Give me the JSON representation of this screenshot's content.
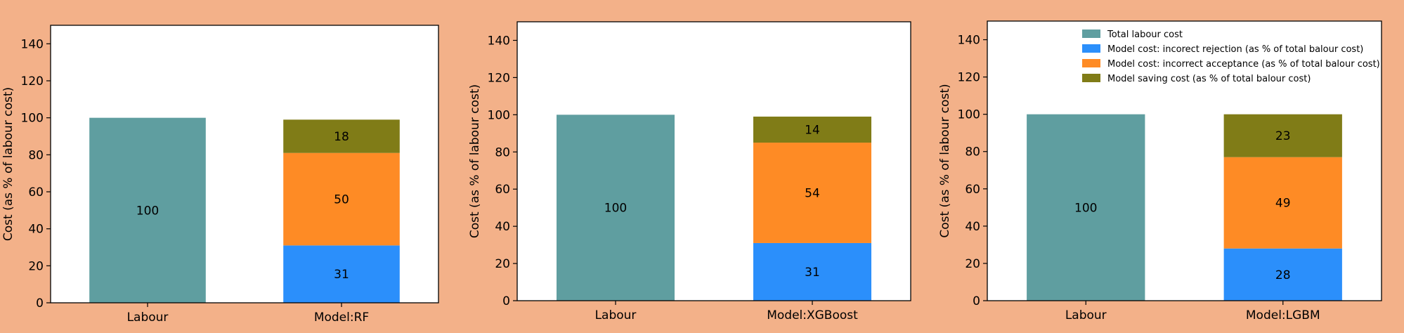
{
  "colors": {
    "background": "#f3b189",
    "labour": "#5f9ea0",
    "rejection": "#2b8ffb",
    "acceptance": "#fe8b25",
    "saving": "#807c17"
  },
  "legend": {
    "placement": "top-right",
    "entries": [
      "Total labour cost",
      "Model cost: incorect rejection (as % of total balour cost)",
      "Model cost:  incorrect acceptance  (as % of total balour cost)",
      "Model saving cost  (as % of total balour cost)"
    ]
  },
  "chart_data": [
    {
      "type": "bar",
      "stacked": true,
      "categories": [
        "Labour",
        "Model:RF"
      ],
      "ylabel": "Cost (as % of labour cost)",
      "ylim": [
        0,
        150
      ],
      "yticks": [
        0,
        20,
        40,
        60,
        80,
        100,
        120,
        140
      ],
      "labour_value": 100,
      "stack": [
        {
          "name": "Model cost: incorect rejection (as % of total balour cost)",
          "value": 31
        },
        {
          "name": "Model cost:  incorrect acceptance  (as % of total balour cost)",
          "value": 50
        },
        {
          "name": "Model saving cost  (as % of total balour cost)",
          "value": 18
        }
      ]
    },
    {
      "type": "bar",
      "stacked": true,
      "categories": [
        "Labour",
        "Model:XGBoost"
      ],
      "ylabel": "Cost (as % of labour cost)",
      "ylim": [
        0,
        150
      ],
      "yticks": [
        0,
        20,
        40,
        60,
        80,
        100,
        120,
        140
      ],
      "labour_value": 100,
      "stack": [
        {
          "name": "Model cost: incorect rejection (as % of total balour cost)",
          "value": 31
        },
        {
          "name": "Model cost:  incorrect acceptance  (as % of total balour cost)",
          "value": 54
        },
        {
          "name": "Model saving cost  (as % of total balour cost)",
          "value": 14
        }
      ]
    },
    {
      "type": "bar",
      "stacked": true,
      "categories": [
        "Labour",
        "Model:LGBM"
      ],
      "ylabel": "Cost (as % of labour cost)",
      "ylim": [
        0,
        150
      ],
      "yticks": [
        0,
        20,
        40,
        60,
        80,
        100,
        120,
        140
      ],
      "labour_value": 100,
      "stack": [
        {
          "name": "Model cost: incorect rejection (as % of total balour cost)",
          "value": 28
        },
        {
          "name": "Model cost:  incorrect acceptance  (as % of total balour cost)",
          "value": 49
        },
        {
          "name": "Model saving cost  (as % of total balour cost)",
          "value": 23
        }
      ]
    }
  ]
}
